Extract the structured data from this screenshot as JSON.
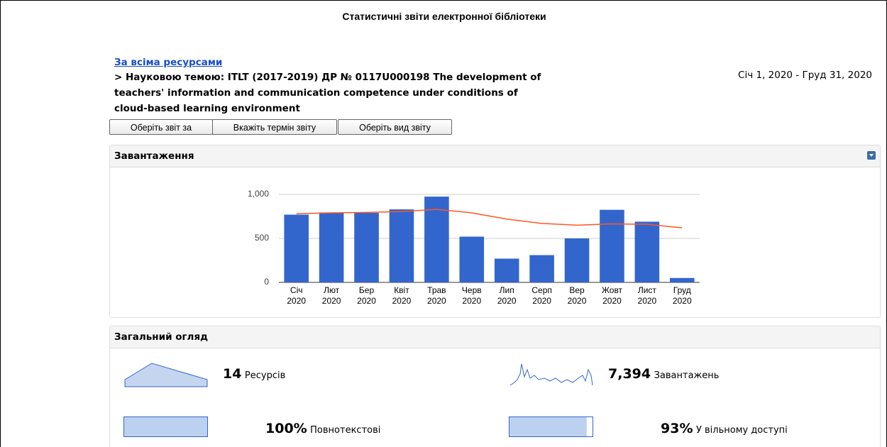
{
  "header": {
    "title": "Статистичні звіти електронної бібліотеки"
  },
  "breadcrumb": {
    "link": "За всіма ресурсами",
    "current": "> Науковою темою: ITLT (2017-2019) ДР № 0117U000198 The development of teachers' information and communication competence under conditions of cloud-based learning environment"
  },
  "date_range": "Січ 1, 2020 - Груд 31, 2020",
  "buttons": [
    "Оберіть звіт за",
    "Вкажіть термін звіту",
    "Оберіть вид звіту"
  ],
  "downloads_panel": {
    "title": "Завантаження"
  },
  "chart_data": {
    "type": "bar",
    "categories": [
      "Січ 2020",
      "Лют 2020",
      "Бер 2020",
      "Квіт 2020",
      "Трав 2020",
      "Черв 2020",
      "Лип 2020",
      "Серп 2020",
      "Вер 2020",
      "Жовт 2020",
      "Лист 2020",
      "Груд 2020"
    ],
    "series": [
      {
        "type": "bar",
        "color": "#3366cc",
        "values": [
          770,
          795,
          790,
          830,
          975,
          520,
          270,
          310,
          500,
          825,
          690,
          50
        ]
      },
      {
        "type": "line",
        "color": "#ff5722",
        "values": [
          780,
          790,
          795,
          805,
          830,
          790,
          720,
          670,
          650,
          665,
          660,
          620
        ]
      }
    ],
    "ylim": [
      0,
      1000
    ],
    "yticks": [
      0,
      500,
      {
        "value": 1000,
        "label": "1,000"
      }
    ],
    "grid": true
  },
  "overview_panel": {
    "title": "Загальний огляд",
    "items": [
      {
        "value": 14,
        "label": "Ресурсів"
      },
      {
        "value": 7394,
        "value_label": "7,394",
        "label": "Завантажень"
      },
      {
        "value": 100,
        "value_label": "100%",
        "label": "Повнотекстові"
      },
      {
        "value": 93,
        "value_label": "93%",
        "label": "У вільному доступі"
      }
    ]
  }
}
